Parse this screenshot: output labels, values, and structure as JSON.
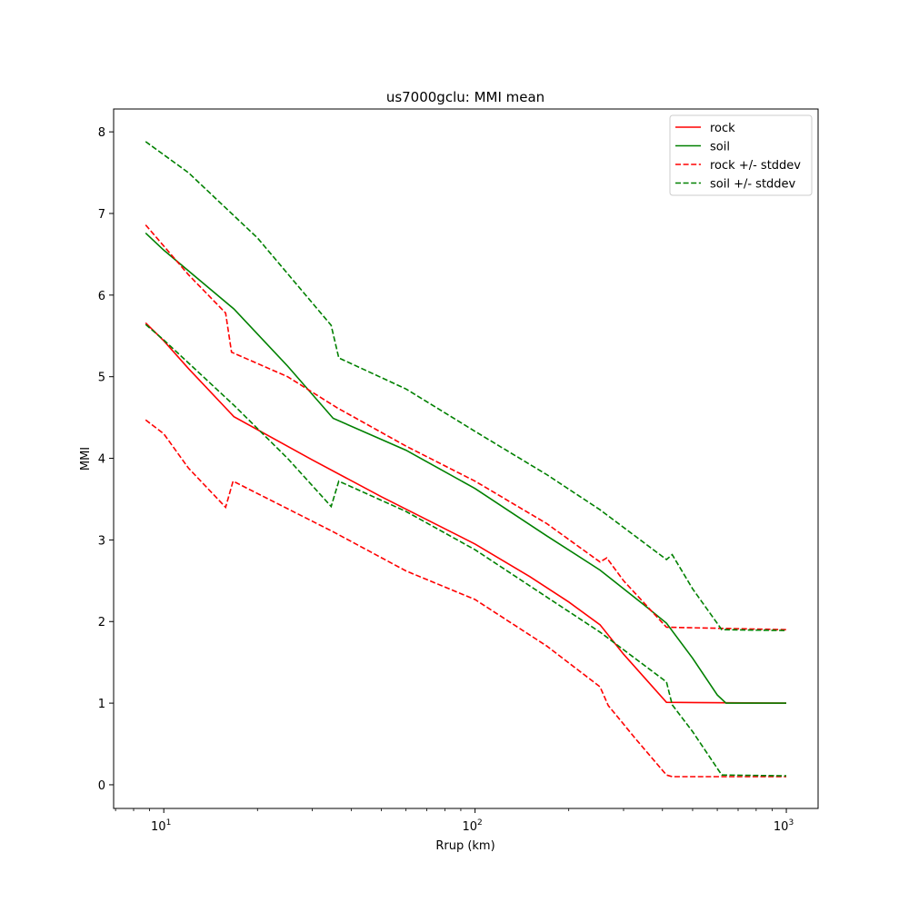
{
  "chart_data": {
    "type": "line",
    "title": "us7000gclu: MMI mean",
    "xlabel": "Rrup (km)",
    "ylabel": "MMI",
    "xscale": "log",
    "xlim": [
      6.9,
      1265
    ],
    "ylim": [
      -0.29,
      8.28
    ],
    "xticks": [
      {
        "value": 10,
        "base": "10",
        "exp": "1"
      },
      {
        "value": 100,
        "base": "10",
        "exp": "2"
      },
      {
        "value": 1000,
        "base": "10",
        "exp": "3"
      }
    ],
    "yticks": [
      "0",
      "1",
      "2",
      "3",
      "4",
      "5",
      "6",
      "7",
      "8"
    ],
    "grid": false,
    "legend_position": "top-right",
    "legend": [
      {
        "label": "rock",
        "color": "#ff0000",
        "dashed": false
      },
      {
        "label": "soil",
        "color": "#008000",
        "dashed": false
      },
      {
        "label": "rock +/- stddev",
        "color": "#ff0000",
        "dashed": true
      },
      {
        "label": "soil +/- stddev",
        "color": "#008000",
        "dashed": true
      }
    ],
    "series": [
      {
        "name": "rock",
        "color": "#ff0000",
        "dashed": false,
        "x": [
          8.74,
          10,
          12,
          16.8,
          30,
          50,
          100,
          150,
          200,
          252,
          300,
          412,
          1000
        ],
        "y": [
          5.66,
          5.44,
          5.1,
          4.51,
          3.98,
          3.53,
          2.95,
          2.55,
          2.24,
          1.96,
          1.6,
          1.01,
          1.0
        ]
      },
      {
        "name": "soil",
        "color": "#008000",
        "dashed": false,
        "x": [
          8.74,
          10,
          16.8,
          25,
          35,
          60,
          100,
          170,
          252,
          350,
          412,
          500,
          600,
          640,
          1000
        ],
        "y": [
          6.76,
          6.55,
          5.83,
          5.13,
          4.49,
          4.1,
          3.63,
          3.05,
          2.63,
          2.2,
          1.98,
          1.55,
          1.1,
          1.0,
          1.0
        ]
      },
      {
        "name": "rock + stddev",
        "color": "#ff0000",
        "dashed": true,
        "x": [
          8.74,
          10,
          12,
          15.8,
          16.5,
          25,
          36,
          60,
          100,
          170,
          252,
          265,
          300,
          412,
          1000
        ],
        "y": [
          6.86,
          6.6,
          6.25,
          5.78,
          5.3,
          5.0,
          4.62,
          4.15,
          3.72,
          3.2,
          2.73,
          2.78,
          2.5,
          1.93,
          1.9
        ]
      },
      {
        "name": "rock - stddev",
        "color": "#ff0000",
        "dashed": true,
        "x": [
          8.74,
          10,
          12,
          15.8,
          16.7,
          35,
          60,
          100,
          170,
          252,
          268,
          330,
          412,
          430,
          1000
        ],
        "y": [
          4.47,
          4.3,
          3.88,
          3.4,
          3.72,
          3.1,
          2.62,
          2.27,
          1.7,
          1.2,
          0.97,
          0.55,
          0.12,
          0.1,
          0.1
        ]
      },
      {
        "name": "soil + stddev",
        "color": "#008000",
        "dashed": true,
        "x": [
          8.74,
          12,
          20,
          34.5,
          36.5,
          60,
          100,
          170,
          252,
          412,
          430,
          500,
          620,
          1000
        ],
        "y": [
          7.88,
          7.5,
          6.7,
          5.63,
          5.23,
          4.85,
          4.33,
          3.8,
          3.37,
          2.76,
          2.82,
          2.4,
          1.9,
          1.89
        ]
      },
      {
        "name": "soil - stddev",
        "color": "#008000",
        "dashed": true,
        "x": [
          8.74,
          10,
          16.8,
          25,
          34.5,
          36.5,
          60,
          100,
          170,
          252,
          412,
          430,
          500,
          620,
          1000
        ],
        "y": [
          5.64,
          5.45,
          4.65,
          4.0,
          3.41,
          3.72,
          3.35,
          2.88,
          2.3,
          1.87,
          1.26,
          0.98,
          0.65,
          0.12,
          0.11
        ]
      }
    ]
  }
}
